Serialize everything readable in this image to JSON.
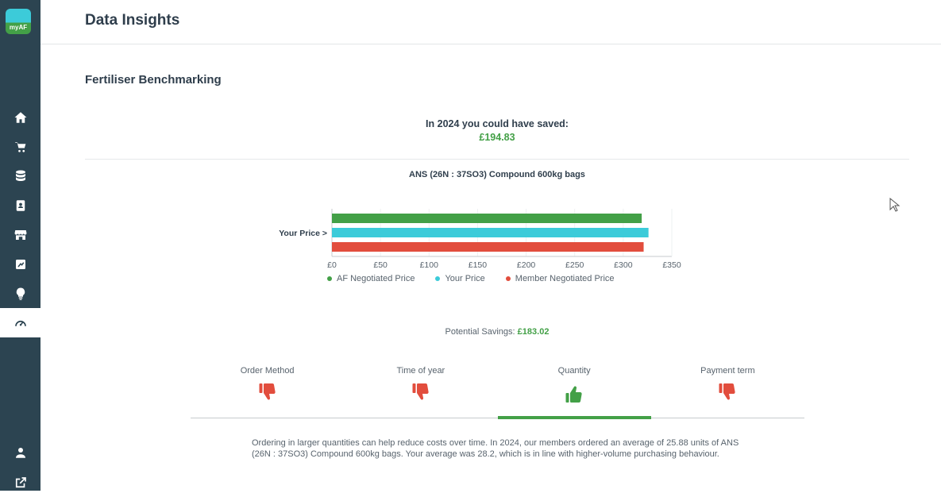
{
  "app": {
    "logo_text": "myAF"
  },
  "header": {
    "title": "Data Insights"
  },
  "sidebar": {
    "items": [
      {
        "name": "home",
        "icon": "home-icon"
      },
      {
        "name": "shop",
        "icon": "cart-icon"
      },
      {
        "name": "data",
        "icon": "database-icon"
      },
      {
        "name": "contacts",
        "icon": "contact-book-icon"
      },
      {
        "name": "store",
        "icon": "store-icon"
      },
      {
        "name": "reports",
        "icon": "chart-box-icon"
      },
      {
        "name": "ideas",
        "icon": "lightbulb-icon"
      },
      {
        "name": "insights",
        "icon": "speedometer-icon",
        "active": true
      }
    ],
    "bottom": [
      {
        "name": "profile",
        "icon": "user-icon"
      },
      {
        "name": "external",
        "icon": "external-link-icon"
      }
    ]
  },
  "main": {
    "section_title": "Fertiliser Benchmarking",
    "saved_text": "In 2024 you could have saved:",
    "saved_amount": "£194.83",
    "potential_label": "Potential Savings:",
    "potential_amount": "£183.02",
    "description": "Ordering in larger quantities can help reduce costs over time. In 2024, our members ordered an average of 25.88 units of ANS (26N : 37SO3) Compound 600kg bags. Your average was 28.2, which is in line with higher-volume purchasing behaviour.",
    "tabs": [
      {
        "label": "Order Method",
        "rating": "thumbs-down"
      },
      {
        "label": "Time of year",
        "rating": "thumbs-down"
      },
      {
        "label": "Quantity",
        "rating": "thumbs-up",
        "active": true
      },
      {
        "label": "Payment term",
        "rating": "thumbs-down"
      }
    ]
  },
  "chart_data": {
    "type": "bar",
    "orientation": "horizontal",
    "title": "ANS (26N : 37SO3) Compound 600kg bags",
    "category_label": "Your Price >",
    "series": [
      {
        "name": "AF Negotiated Price",
        "value": 319,
        "color": "#43a047"
      },
      {
        "name": "Your Price",
        "value": 326,
        "color": "#3ccbd9"
      },
      {
        "name": "Member Negotiated Price",
        "value": 321,
        "color": "#e24d3d"
      }
    ],
    "xlim": [
      0,
      350
    ],
    "ticks": [
      "£0",
      "£50",
      "£100",
      "£150",
      "£200",
      "£250",
      "£300",
      "£350"
    ],
    "legend": "bottom"
  }
}
